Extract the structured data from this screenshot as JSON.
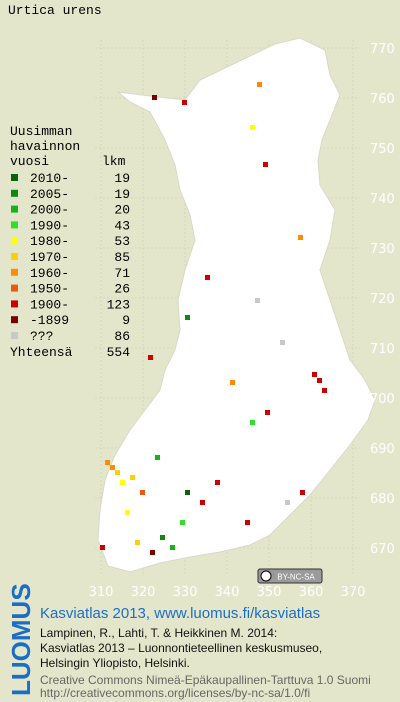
{
  "title": "Urtica urens",
  "legend": {
    "heading": [
      "Uusimman",
      "havainnon",
      "vuosi"
    ],
    "count_heading": "lkm",
    "rows": [
      {
        "label": "2010-",
        "count": 19,
        "color": "#0b620b"
      },
      {
        "label": "2005-",
        "count": 19,
        "color": "#0f880f"
      },
      {
        "label": "2000-",
        "count": 20,
        "color": "#14b414"
      },
      {
        "label": "1990-",
        "count": 43,
        "color": "#2ee02e"
      },
      {
        "label": "1980-",
        "count": 53,
        "color": "#ffff00"
      },
      {
        "label": "1970-",
        "count": 85,
        "color": "#ffd000"
      },
      {
        "label": "1960-",
        "count": 71,
        "color": "#ff8c00"
      },
      {
        "label": "1950-",
        "count": 26,
        "color": "#e85a10"
      },
      {
        "label": "1900-",
        "count": 123,
        "color": "#cc0000"
      },
      {
        "label": "-1899",
        "count": 9,
        "color": "#7a0000"
      },
      {
        "label": "???",
        "count": 86,
        "color": "#c8c8c8"
      }
    ],
    "total_label": "Yhteensä",
    "total": 554
  },
  "map": {
    "y_labels": [
      770,
      760,
      750,
      740,
      730,
      720,
      710,
      700,
      690,
      680,
      670
    ],
    "x_labels": [
      310,
      320,
      330,
      340,
      350,
      360,
      370
    ],
    "license": "BY-NC-SA"
  },
  "footer": {
    "brand": "LUOMUS",
    "headline": "Kasviatlas 2013, www.luomus.fi/kasviatlas",
    "citation": [
      "Lampinen, R., Lahti, T. & Heikkinen M. 2014:",
      "Kasviatlas 2013 – Luonnontieteellinen keskusmuseo,",
      "Helsingin Yliopisto, Helsinki."
    ],
    "license": [
      "Creative Commons Nimeä-Epäkaupallinen-Tarttuva 1.0 Suomi",
      "http://creativecommons.org/licenses/by-nc-sa/1.0/fi"
    ]
  }
}
